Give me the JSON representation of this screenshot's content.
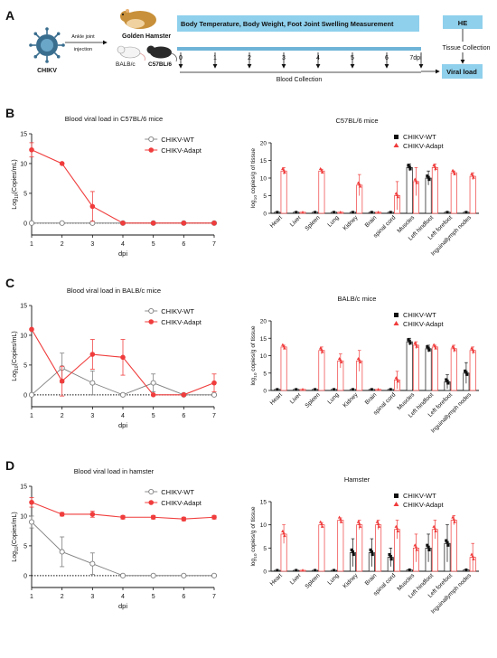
{
  "panel_labels": [
    "A",
    "B",
    "C",
    "D"
  ],
  "schematic": {
    "virus_label": "CHIKV",
    "route_label_1": "Ankle joint",
    "route_label_2": "injection",
    "animals": [
      "Golden Hamster",
      "BALB/c",
      "C57BL/6"
    ],
    "banner": "Body Temperature, Body Weight, Foot Joint Swelling Measurement",
    "days": [
      "0",
      "1",
      "2",
      "3",
      "4",
      "5",
      "6",
      "7dpi"
    ],
    "blood_collection": "Blood Collection",
    "he_label": "HE",
    "tissue_collection": "Tissue Collection",
    "viral_load": "Viral load",
    "colors": {
      "banner": "#8fd0ec",
      "timeline": "#6fb4d8",
      "virus": "#3a6e8f",
      "hamster": "#c8903a"
    }
  },
  "legend": {
    "wt": "CHIKV-WT",
    "adapt": "CHIKV-Adapt"
  },
  "colors": {
    "wt": "#7f7f7f",
    "adapt": "#f03c3c",
    "wt_bar": "#111111"
  },
  "chart_data": [
    {
      "type": "line",
      "title": "Blood viral load in C57BL/6 mice",
      "xlabel": "dpi",
      "ylabel_main": "Log",
      "ylabel_sub": "10",
      "ylabel_rest": "(Copies/mL)",
      "x": [
        1,
        2,
        3,
        4,
        5,
        6,
        7
      ],
      "xlim": [
        1,
        7
      ],
      "ylim": [
        -2,
        15
      ],
      "yticks": [
        0,
        5,
        10,
        15
      ],
      "baseline": 0,
      "series": [
        {
          "name": "CHIKV-WT",
          "values": [
            0,
            0,
            0,
            0,
            0,
            0,
            0
          ],
          "err": [
            0,
            0,
            0,
            0,
            0,
            0,
            0
          ]
        },
        {
          "name": "CHIKV-Adapt",
          "values": [
            12.3,
            10,
            2.8,
            0,
            0,
            0,
            0
          ],
          "err": [
            1.2,
            0,
            2.5,
            0,
            0,
            0,
            0
          ]
        }
      ]
    },
    {
      "type": "bar",
      "title": "C57BL/6 mice",
      "ylabel_main": "log",
      "ylabel_sub": "10",
      "ylabel_rest": " copies/g of tissue",
      "categories": [
        "Heart",
        "Liver",
        "Spleen",
        "Lung",
        "Kidney",
        "Brain",
        "spinal cord",
        "Muscles",
        "Left hindfoot",
        "Left forefoot",
        "Inguinallymph nodes"
      ],
      "ylim": [
        0,
        20
      ],
      "yticks": [
        0,
        5,
        10,
        15,
        20
      ],
      "series": [
        {
          "name": "CHIKV-WT",
          "values": [
            0.3,
            0.3,
            0.3,
            0.3,
            0.3,
            0.3,
            0.3,
            13,
            10,
            0.3,
            0.3
          ],
          "err": [
            0,
            0,
            0,
            0,
            0,
            0,
            0,
            1,
            2,
            0,
            0
          ]
        },
        {
          "name": "CHIKV-Adapt",
          "values": [
            12,
            0.3,
            12,
            0.3,
            8,
            0.3,
            5,
            9,
            13,
            11.5,
            10.5
          ],
          "err": [
            1,
            0,
            0.5,
            0,
            3,
            0,
            4,
            4,
            1,
            0.5,
            1
          ]
        }
      ]
    },
    {
      "type": "line",
      "title": "Blood viral load in BALB/c mice",
      "xlabel": "dpi",
      "ylabel_main": "Log",
      "ylabel_sub": "10",
      "ylabel_rest": "(Copies/mL)",
      "x": [
        1,
        2,
        3,
        4,
        5,
        6,
        7
      ],
      "xlim": [
        1,
        7
      ],
      "ylim": [
        -2,
        15
      ],
      "yticks": [
        0,
        5,
        10,
        15
      ],
      "baseline": 0,
      "series": [
        {
          "name": "CHIKV-WT",
          "values": [
            0,
            4.5,
            2,
            0,
            2,
            0,
            0
          ],
          "err": [
            0,
            2.5,
            2,
            0,
            1.5,
            0,
            0
          ]
        },
        {
          "name": "CHIKV-Adapt",
          "values": [
            11,
            2.3,
            6.8,
            6.3,
            0,
            0,
            2
          ],
          "err": [
            0,
            2.5,
            2.5,
            3,
            0,
            0,
            1.5
          ]
        }
      ]
    },
    {
      "type": "bar",
      "title": "BALB/c mice",
      "ylabel_main": "log",
      "ylabel_sub": "10",
      "ylabel_rest": " copies/g of tissue",
      "categories": [
        "Heart",
        "Liver",
        "Spleen",
        "Lung",
        "Kidney",
        "Brain",
        "spinal cord",
        "Muscles",
        "Left hindfoot",
        "Left forefoot",
        "Inguinallymph nodes"
      ],
      "ylim": [
        0,
        20
      ],
      "yticks": [
        0,
        5,
        10,
        15,
        20
      ],
      "series": [
        {
          "name": "CHIKV-WT",
          "values": [
            0.3,
            0.3,
            0.3,
            0.3,
            0.3,
            0.3,
            0.3,
            14,
            12,
            2.5,
            5
          ],
          "err": [
            0,
            0,
            0,
            0,
            0,
            0,
            0,
            1,
            1,
            2,
            3
          ]
        },
        {
          "name": "CHIKV-Adapt",
          "values": [
            12.5,
            0.3,
            11.5,
            8.5,
            8.5,
            0.3,
            3,
            13,
            12.5,
            12,
            11.5
          ],
          "err": [
            0.5,
            0,
            1,
            2,
            3,
            0,
            2.5,
            1,
            0.5,
            1,
            1
          ]
        }
      ]
    },
    {
      "type": "line",
      "title": "Blood viral load in hamster",
      "xlabel": "dpi",
      "ylabel_main": "Log",
      "ylabel_sub": "10",
      "ylabel_rest": "(Copies/mL)",
      "x": [
        1,
        2,
        3,
        4,
        5,
        6,
        7
      ],
      "xlim": [
        1,
        7
      ],
      "ylim": [
        -2,
        15
      ],
      "yticks": [
        0,
        5,
        10,
        15
      ],
      "baseline": 0,
      "series": [
        {
          "name": "CHIKV-WT",
          "values": [
            9,
            4,
            2,
            0,
            0,
            0,
            0
          ],
          "err": [
            1,
            2.5,
            1.8,
            0,
            0,
            0,
            0
          ]
        },
        {
          "name": "CHIKV-Adapt",
          "values": [
            12.3,
            10.3,
            10.3,
            9.8,
            9.8,
            9.5,
            9.8
          ],
          "err": [
            0.8,
            0.3,
            0.5,
            0.3,
            0.3,
            0.3,
            0.3
          ]
        }
      ]
    },
    {
      "type": "bar",
      "title": "Hamster",
      "ylabel_main": "log",
      "ylabel_sub": "10",
      "ylabel_rest": " copies/g of tissue",
      "categories": [
        "Heart",
        "Liver",
        "Spleen",
        "Lung",
        "Kidney",
        "Brain",
        "spinal cord",
        "Muscles",
        "Left hindfoot",
        "Left forefoot",
        "Inguinallymph nodes"
      ],
      "ylim": [
        0,
        15
      ],
      "yticks": [
        0,
        5,
        10,
        15
      ],
      "series": [
        {
          "name": "CHIKV-WT",
          "values": [
            0.2,
            0.2,
            0.2,
            0.2,
            4,
            4,
            3,
            0.3,
            5,
            6,
            0.3
          ],
          "err": [
            0,
            0,
            0,
            0,
            3,
            3,
            2,
            0,
            3,
            4,
            0
          ]
        },
        {
          "name": "CHIKV-Adapt",
          "values": [
            8,
            0.2,
            10,
            11,
            10,
            10,
            9,
            5,
            9,
            11,
            3
          ],
          "err": [
            2,
            0,
            0.5,
            0.5,
            1,
            1,
            2,
            3,
            2,
            1,
            3
          ]
        }
      ]
    }
  ]
}
